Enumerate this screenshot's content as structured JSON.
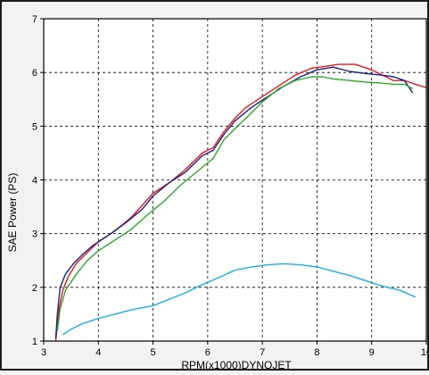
{
  "chart_data": {
    "type": "line",
    "title": "",
    "corner_text": "",
    "xlabel": "RPM(x1000)DYNOJET",
    "ylabel": "SAE Power (PS)",
    "xlim": [
      3,
      10
    ],
    "ylim": [
      1,
      7
    ],
    "x_ticks": [
      3,
      4,
      5,
      6,
      7,
      8,
      9,
      10
    ],
    "y_ticks": [
      1,
      2,
      3,
      4,
      5,
      6,
      7
    ],
    "x_tick_labels": [
      "3",
      "4",
      "5",
      "6",
      "7",
      "8",
      "9",
      "10"
    ],
    "y_tick_labels": [
      "1",
      "2",
      "3",
      "4",
      "5",
      "6",
      "7"
    ],
    "grid": true,
    "grid_style": "dashed",
    "legend": "none",
    "colors": {
      "background": "#ffffff",
      "page": "#f2f2f2",
      "frame": "#1a1a1a",
      "grid": "#000000",
      "corner_text": "#e8161e"
    },
    "series": [
      {
        "color": "#e8161e",
        "x": [
          3.22,
          3.28,
          3.35,
          3.45,
          3.6,
          3.8,
          4.0,
          4.3,
          4.6,
          5.0,
          5.3,
          5.6,
          5.9,
          6.1,
          6.3,
          6.5,
          6.7,
          7.0,
          7.3,
          7.6,
          7.9,
          8.2,
          8.4,
          8.7,
          9.0,
          9.2,
          9.4,
          9.6,
          9.8,
          10.0
        ],
        "y": [
          1.0,
          1.6,
          1.95,
          2.2,
          2.45,
          2.65,
          2.85,
          3.05,
          3.3,
          3.75,
          3.95,
          4.2,
          4.5,
          4.6,
          4.9,
          5.15,
          5.35,
          5.55,
          5.75,
          5.95,
          6.08,
          6.12,
          6.15,
          6.15,
          6.05,
          5.95,
          5.85,
          5.85,
          5.78,
          5.72
        ]
      },
      {
        "color": "#1a237e",
        "x": [
          3.22,
          3.25,
          3.3,
          3.4,
          3.55,
          3.7,
          3.9,
          4.2,
          4.5,
          4.8,
          5.0,
          5.3,
          5.6,
          5.9,
          6.1,
          6.3,
          6.5,
          6.8,
          7.1,
          7.4,
          7.7,
          8.0,
          8.3,
          8.6,
          8.9,
          9.2,
          9.4,
          9.6,
          9.75
        ],
        "y": [
          1.05,
          1.5,
          2.0,
          2.25,
          2.45,
          2.6,
          2.78,
          2.98,
          3.2,
          3.45,
          3.7,
          3.95,
          4.15,
          4.45,
          4.55,
          4.85,
          5.1,
          5.35,
          5.55,
          5.75,
          5.92,
          6.05,
          6.1,
          6.02,
          5.98,
          5.95,
          5.92,
          5.85,
          5.62
        ]
      },
      {
        "color": "#2ea82c",
        "x": [
          3.25,
          3.3,
          3.4,
          3.6,
          3.8,
          4.0,
          4.3,
          4.6,
          4.9,
          5.2,
          5.5,
          5.8,
          6.1,
          6.3,
          6.5,
          6.7,
          7.0,
          7.3,
          7.6,
          7.9,
          8.1,
          8.3,
          8.6,
          8.9,
          9.2,
          9.4,
          9.6,
          9.75
        ],
        "y": [
          1.2,
          1.6,
          1.95,
          2.25,
          2.5,
          2.68,
          2.88,
          3.08,
          3.35,
          3.6,
          3.9,
          4.15,
          4.4,
          4.75,
          4.95,
          5.15,
          5.45,
          5.7,
          5.85,
          5.92,
          5.92,
          5.88,
          5.85,
          5.82,
          5.8,
          5.78,
          5.78,
          5.7
        ]
      },
      {
        "color": "#1ab0e0",
        "x": [
          3.35,
          3.5,
          3.7,
          4.0,
          4.3,
          4.6,
          5.0,
          5.3,
          5.6,
          5.9,
          6.2,
          6.5,
          6.8,
          7.1,
          7.4,
          7.7,
          8.0,
          8.3,
          8.6,
          8.9,
          9.2,
          9.5,
          9.8
        ],
        "y": [
          1.12,
          1.22,
          1.32,
          1.42,
          1.5,
          1.58,
          1.66,
          1.78,
          1.9,
          2.05,
          2.18,
          2.32,
          2.38,
          2.42,
          2.44,
          2.42,
          2.38,
          2.3,
          2.22,
          2.12,
          2.02,
          1.95,
          1.82
        ]
      }
    ]
  }
}
